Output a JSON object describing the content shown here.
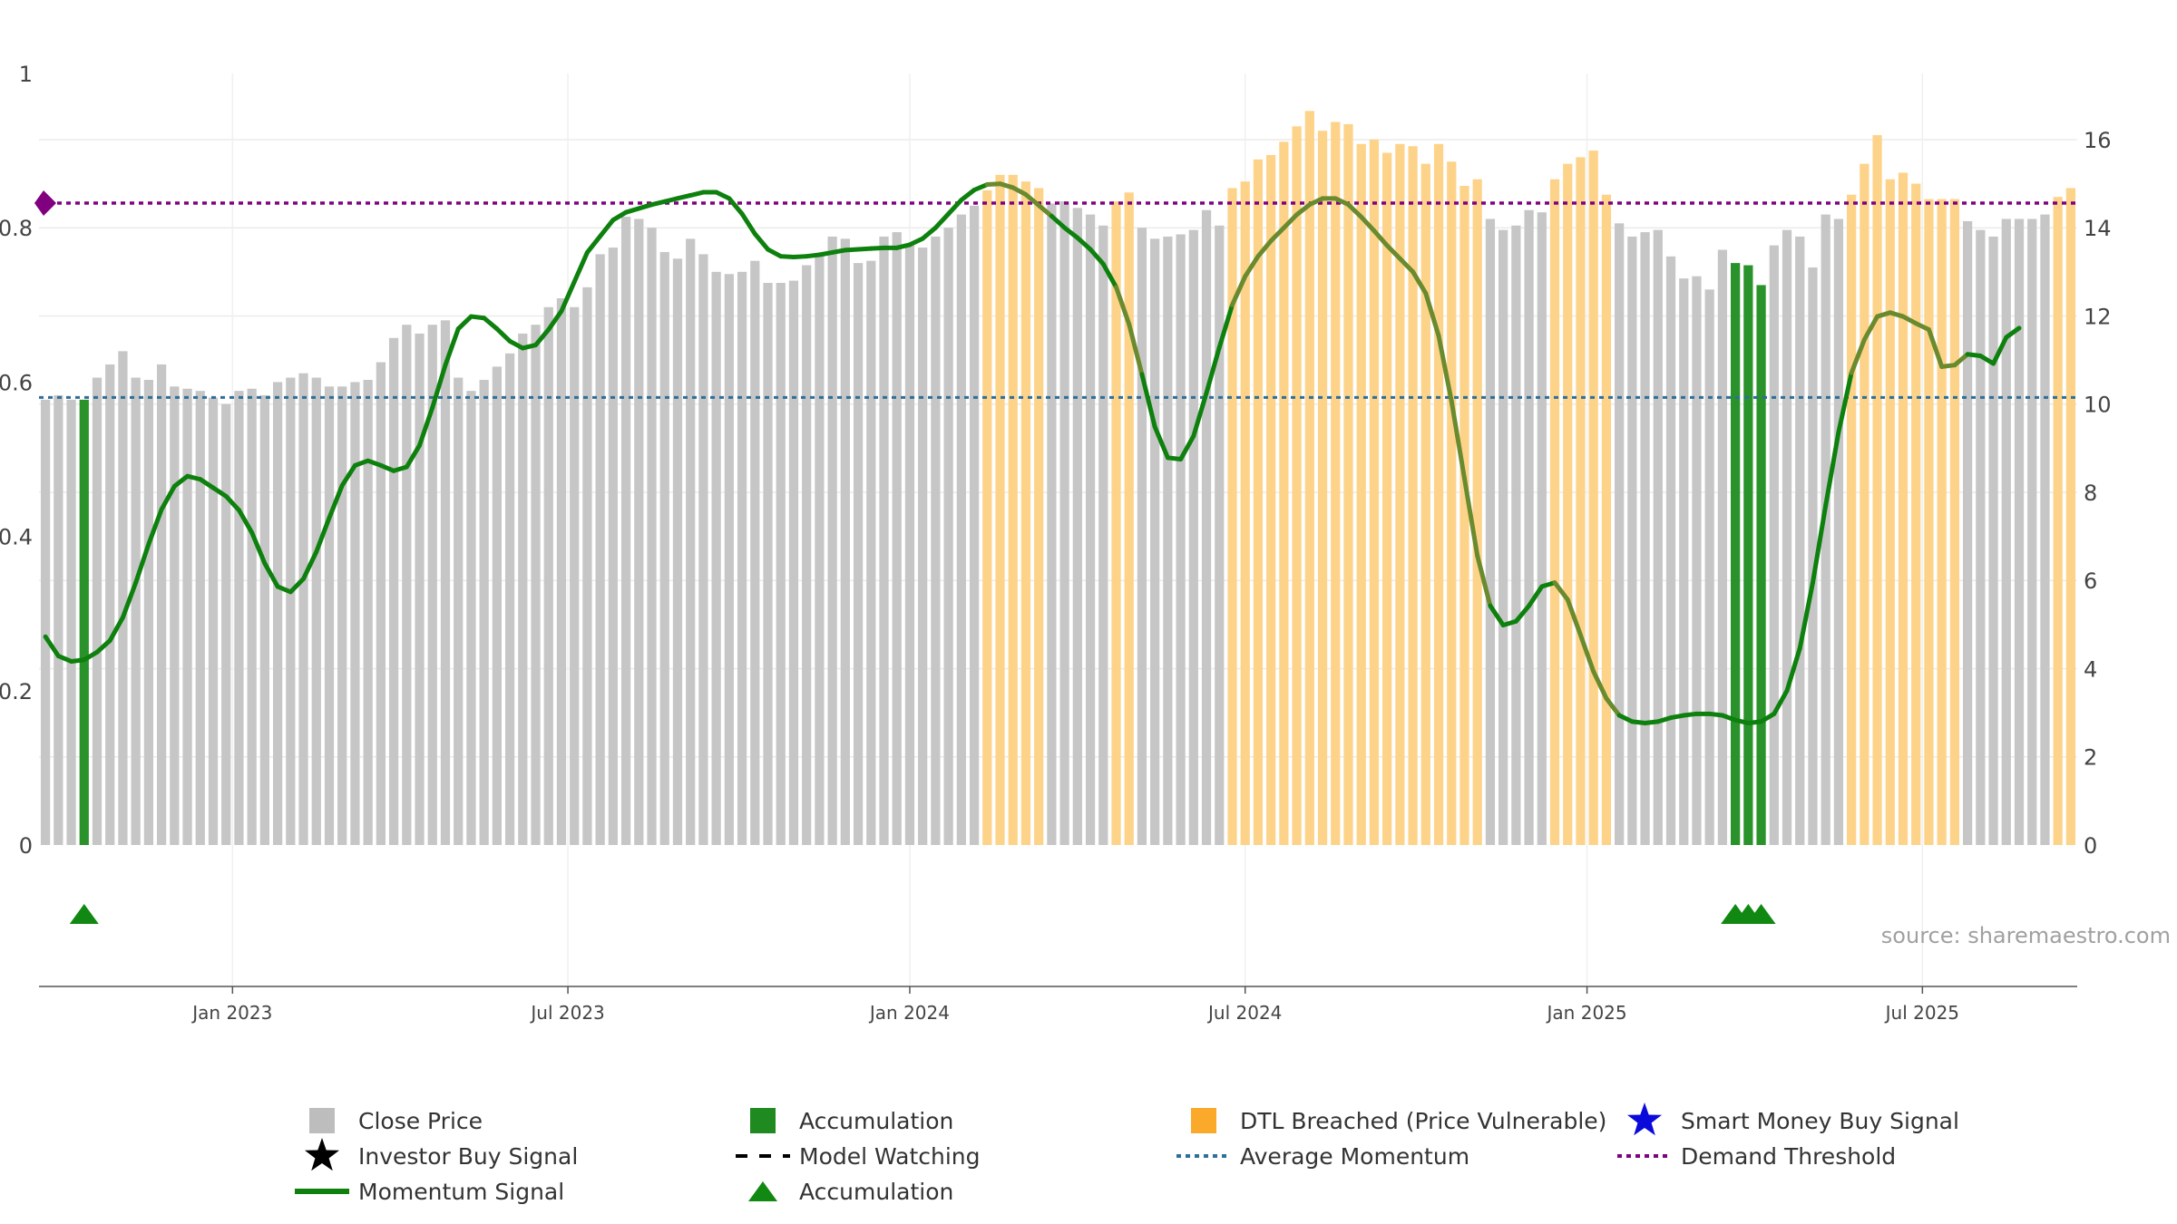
{
  "chart_data": {
    "type": "bar",
    "source_label": "source: sharemaestro.com",
    "y_left": {
      "ticks": [
        0,
        0.2,
        0.4,
        0.6,
        0.8,
        1
      ],
      "labels": [
        "0",
        "0.2",
        "0.4",
        "0.6",
        "0.8",
        "1"
      ],
      "range": [
        0,
        1
      ]
    },
    "y_right": {
      "ticks": [
        0,
        2,
        4,
        6,
        8,
        10,
        12,
        14,
        16
      ],
      "labels": [
        "0",
        "2",
        "4",
        "6",
        "8",
        "10",
        "12",
        "14",
        "16"
      ],
      "range": [
        0,
        17.5
      ]
    },
    "x_ticks": [
      {
        "label": "Jan 2023",
        "week": 15
      },
      {
        "label": "Jul 2023",
        "week": 41
      },
      {
        "label": "Jan 2024",
        "week": 67.5
      },
      {
        "label": "Jul 2024",
        "week": 93.5
      },
      {
        "label": "Jan 2025",
        "week": 120
      },
      {
        "label": "Jul 2025",
        "week": 146
      }
    ],
    "colors": {
      "close": "#c6c6c6",
      "accumulation": "#2a922a",
      "dtl": "#fdd38a",
      "momentum": "#0d800d",
      "momentum_dtl": "#6a8a2e",
      "average_momentum": "#2e6f99",
      "demand_threshold": "#800080",
      "grid": "#ebebeb",
      "triangle": "#118811"
    },
    "bars": [
      [
        "c",
        10.1
      ],
      [
        "c",
        10.2
      ],
      [
        "c",
        10.1
      ],
      [
        "a",
        10.1
      ],
      [
        "c",
        10.6
      ],
      [
        "c",
        10.9
      ],
      [
        "c",
        11.2
      ],
      [
        "c",
        10.6
      ],
      [
        "c",
        10.55
      ],
      [
        "c",
        10.9
      ],
      [
        "c",
        10.4
      ],
      [
        "c",
        10.35
      ],
      [
        "c",
        10.3
      ],
      [
        "c",
        10.15
      ],
      [
        "c",
        10.0
      ],
      [
        "c",
        10.3
      ],
      [
        "c",
        10.35
      ],
      [
        "c",
        10.2
      ],
      [
        "c",
        10.5
      ],
      [
        "c",
        10.6
      ],
      [
        "c",
        10.7
      ],
      [
        "c",
        10.6
      ],
      [
        "c",
        10.4
      ],
      [
        "c",
        10.4
      ],
      [
        "c",
        10.5
      ],
      [
        "c",
        10.55
      ],
      [
        "c",
        10.95
      ],
      [
        "c",
        11.5
      ],
      [
        "c",
        11.8
      ],
      [
        "c",
        11.6
      ],
      [
        "c",
        11.8
      ],
      [
        "c",
        11.9
      ],
      [
        "c",
        10.6
      ],
      [
        "c",
        10.3
      ],
      [
        "c",
        10.55
      ],
      [
        "c",
        10.85
      ],
      [
        "c",
        11.15
      ],
      [
        "c",
        11.6
      ],
      [
        "c",
        11.8
      ],
      [
        "c",
        12.2
      ],
      [
        "c",
        12.4
      ],
      [
        "c",
        12.2
      ],
      [
        "c",
        12.65
      ],
      [
        "c",
        13.4
      ],
      [
        "c",
        13.55
      ],
      [
        "c",
        14.25
      ],
      [
        "c",
        14.2
      ],
      [
        "c",
        14.0
      ],
      [
        "c",
        13.45
      ],
      [
        "c",
        13.3
      ],
      [
        "c",
        13.75
      ],
      [
        "c",
        13.4
      ],
      [
        "c",
        13.0
      ],
      [
        "c",
        12.95
      ],
      [
        "c",
        13.0
      ],
      [
        "c",
        13.25
      ],
      [
        "c",
        12.75
      ],
      [
        "c",
        12.75
      ],
      [
        "c",
        12.8
      ],
      [
        "c",
        13.15
      ],
      [
        "c",
        13.4
      ],
      [
        "c",
        13.8
      ],
      [
        "c",
        13.75
      ],
      [
        "c",
        13.2
      ],
      [
        "c",
        13.25
      ],
      [
        "c",
        13.8
      ],
      [
        "c",
        13.9
      ],
      [
        "c",
        13.6
      ],
      [
        "c",
        13.55
      ],
      [
        "c",
        13.8
      ],
      [
        "c",
        14.0
      ],
      [
        "c",
        14.3
      ],
      [
        "c",
        14.5
      ],
      [
        "d",
        14.85
      ],
      [
        "d",
        15.2
      ],
      [
        "d",
        15.2
      ],
      [
        "d",
        15.05
      ],
      [
        "d",
        14.9
      ],
      [
        "c",
        14.55
      ],
      [
        "c",
        14.6
      ],
      [
        "c",
        14.45
      ],
      [
        "c",
        14.3
      ],
      [
        "c",
        14.05
      ],
      [
        "d",
        14.6
      ],
      [
        "d",
        14.8
      ],
      [
        "c",
        14.0
      ],
      [
        "c",
        13.75
      ],
      [
        "c",
        13.8
      ],
      [
        "c",
        13.85
      ],
      [
        "c",
        13.95
      ],
      [
        "c",
        14.4
      ],
      [
        "c",
        14.05
      ],
      [
        "d",
        14.9
      ],
      [
        "d",
        15.05
      ],
      [
        "d",
        15.55
      ],
      [
        "d",
        15.65
      ],
      [
        "d",
        15.95
      ],
      [
        "d",
        16.3
      ],
      [
        "d",
        16.65
      ],
      [
        "d",
        16.2
      ],
      [
        "d",
        16.4
      ],
      [
        "d",
        16.35
      ],
      [
        "d",
        15.9
      ],
      [
        "d",
        16.0
      ],
      [
        "d",
        15.7
      ],
      [
        "d",
        15.9
      ],
      [
        "d",
        15.85
      ],
      [
        "d",
        15.45
      ],
      [
        "d",
        15.9
      ],
      [
        "d",
        15.5
      ],
      [
        "d",
        14.95
      ],
      [
        "d",
        15.1
      ],
      [
        "c",
        14.2
      ],
      [
        "c",
        13.95
      ],
      [
        "c",
        14.05
      ],
      [
        "c",
        14.4
      ],
      [
        "c",
        14.35
      ],
      [
        "d",
        15.1
      ],
      [
        "d",
        15.45
      ],
      [
        "d",
        15.6
      ],
      [
        "d",
        15.75
      ],
      [
        "d",
        14.75
      ],
      [
        "c",
        14.1
      ],
      [
        "c",
        13.8
      ],
      [
        "c",
        13.9
      ],
      [
        "c",
        13.95
      ],
      [
        "c",
        13.35
      ],
      [
        "c",
        12.85
      ],
      [
        "c",
        12.9
      ],
      [
        "c",
        12.6
      ],
      [
        "c",
        13.5
      ],
      [
        "a",
        13.2
      ],
      [
        "a",
        13.15
      ],
      [
        "a",
        12.7
      ],
      [
        "c",
        13.6
      ],
      [
        "c",
        13.95
      ],
      [
        "c",
        13.8
      ],
      [
        "c",
        13.1
      ],
      [
        "c",
        14.3
      ],
      [
        "c",
        14.2
      ],
      [
        "d",
        14.75
      ],
      [
        "d",
        15.45
      ],
      [
        "d",
        16.1
      ],
      [
        "d",
        15.1
      ],
      [
        "d",
        15.25
      ],
      [
        "d",
        15.0
      ],
      [
        "d",
        14.65
      ],
      [
        "d",
        14.65
      ],
      [
        "d",
        14.65
      ],
      [
        "c",
        14.15
      ],
      [
        "c",
        13.95
      ],
      [
        "c",
        13.8
      ],
      [
        "c",
        14.2
      ],
      [
        "c",
        14.2
      ],
      [
        "c",
        14.2
      ],
      [
        "c",
        14.3
      ],
      [
        "d",
        14.7
      ],
      [
        "d",
        14.9
      ]
    ],
    "momentum": [
      [
        0,
        0.27
      ],
      [
        1,
        0.245
      ],
      [
        2,
        0.238
      ],
      [
        3,
        0.24
      ],
      [
        4,
        0.25
      ],
      [
        5,
        0.265
      ],
      [
        6,
        0.295
      ],
      [
        7,
        0.34
      ],
      [
        8,
        0.39
      ],
      [
        9,
        0.435
      ],
      [
        10,
        0.465
      ],
      [
        11,
        0.478
      ],
      [
        12,
        0.474
      ],
      [
        13,
        0.463
      ],
      [
        14,
        0.452
      ],
      [
        15,
        0.434
      ],
      [
        16,
        0.405
      ],
      [
        17,
        0.365
      ],
      [
        18,
        0.335
      ],
      [
        19,
        0.328
      ],
      [
        20,
        0.345
      ],
      [
        21,
        0.38
      ],
      [
        22,
        0.424
      ],
      [
        23,
        0.466
      ],
      [
        24,
        0.492
      ],
      [
        25,
        0.498
      ],
      [
        26,
        0.492
      ],
      [
        27,
        0.485
      ],
      [
        28,
        0.49
      ],
      [
        29,
        0.518
      ],
      [
        30,
        0.567
      ],
      [
        31,
        0.622
      ],
      [
        32,
        0.669
      ],
      [
        33,
        0.685
      ],
      [
        34,
        0.683
      ],
      [
        35,
        0.669
      ],
      [
        36,
        0.653
      ],
      [
        37,
        0.644
      ],
      [
        38,
        0.648
      ],
      [
        39,
        0.668
      ],
      [
        40,
        0.692
      ],
      [
        41,
        0.73
      ],
      [
        42,
        0.768
      ],
      [
        43,
        0.789
      ],
      [
        44,
        0.81
      ],
      [
        45,
        0.82
      ],
      [
        46,
        0.825
      ],
      [
        47,
        0.83
      ],
      [
        48,
        0.834
      ],
      [
        49,
        0.838
      ],
      [
        50,
        0.842
      ],
      [
        51,
        0.846
      ],
      [
        52,
        0.846
      ],
      [
        53,
        0.838
      ],
      [
        54,
        0.818
      ],
      [
        55,
        0.792
      ],
      [
        56,
        0.772
      ],
      [
        57,
        0.763
      ],
      [
        58,
        0.762
      ],
      [
        59,
        0.763
      ],
      [
        60,
        0.765
      ],
      [
        61,
        0.768
      ],
      [
        62,
        0.771
      ],
      [
        63,
        0.772
      ],
      [
        64,
        0.773
      ],
      [
        65,
        0.774
      ],
      [
        66,
        0.774
      ],
      [
        67,
        0.778
      ],
      [
        68,
        0.786
      ],
      [
        69,
        0.8
      ],
      [
        70,
        0.818
      ],
      [
        71,
        0.836
      ],
      [
        72,
        0.849
      ],
      [
        73,
        0.856
      ],
      [
        74,
        0.857
      ],
      [
        75,
        0.852
      ],
      [
        76,
        0.843
      ],
      [
        77,
        0.829
      ],
      [
        78,
        0.815
      ],
      [
        79,
        0.8
      ],
      [
        80,
        0.787
      ],
      [
        81,
        0.772
      ],
      [
        82,
        0.753
      ],
      [
        83,
        0.723
      ],
      [
        84,
        0.675
      ],
      [
        85,
        0.61
      ],
      [
        86,
        0.542
      ],
      [
        87,
        0.502
      ],
      [
        88,
        0.5
      ],
      [
        89,
        0.53
      ],
      [
        90,
        0.586
      ],
      [
        91,
        0.645
      ],
      [
        92,
        0.7
      ],
      [
        93,
        0.737
      ],
      [
        94,
        0.763
      ],
      [
        95,
        0.783
      ],
      [
        96,
        0.8
      ],
      [
        97,
        0.817
      ],
      [
        98,
        0.83
      ],
      [
        99,
        0.838
      ],
      [
        100,
        0.838
      ],
      [
        101,
        0.83
      ],
      [
        102,
        0.814
      ],
      [
        103,
        0.796
      ],
      [
        104,
        0.777
      ],
      [
        105,
        0.76
      ],
      [
        106,
        0.743
      ],
      [
        107,
        0.715
      ],
      [
        108,
        0.66
      ],
      [
        109,
        0.575
      ],
      [
        110,
        0.475
      ],
      [
        111,
        0.375
      ],
      [
        112,
        0.31
      ],
      [
        113,
        0.285
      ],
      [
        114,
        0.29
      ],
      [
        115,
        0.31
      ],
      [
        116,
        0.335
      ],
      [
        117,
        0.34
      ],
      [
        118,
        0.318
      ],
      [
        119,
        0.272
      ],
      [
        120,
        0.225
      ],
      [
        121,
        0.19
      ],
      [
        122,
        0.168
      ],
      [
        123,
        0.16
      ],
      [
        124,
        0.158
      ],
      [
        125,
        0.16
      ],
      [
        126,
        0.165
      ],
      [
        127,
        0.168
      ],
      [
        128,
        0.17
      ],
      [
        129,
        0.17
      ],
      [
        130,
        0.168
      ],
      [
        131,
        0.162
      ],
      [
        132,
        0.158
      ],
      [
        133,
        0.16
      ],
      [
        134,
        0.17
      ],
      [
        135,
        0.2
      ],
      [
        136,
        0.255
      ],
      [
        137,
        0.34
      ],
      [
        138,
        0.44
      ],
      [
        139,
        0.535
      ],
      [
        140,
        0.612
      ],
      [
        141,
        0.655
      ],
      [
        142,
        0.685
      ],
      [
        143,
        0.69
      ],
      [
        144,
        0.685
      ],
      [
        145,
        0.676
      ],
      [
        146,
        0.668
      ],
      [
        147,
        0.62
      ],
      [
        148,
        0.622
      ],
      [
        149,
        0.636
      ],
      [
        150,
        0.634
      ],
      [
        151,
        0.624
      ],
      [
        152,
        0.658
      ],
      [
        153,
        0.67
      ]
    ],
    "average_momentum": 0.58,
    "demand_threshold": 0.832,
    "accumulation_triangles": [
      3,
      131,
      132,
      133
    ],
    "legend": [
      {
        "label": "Close Price",
        "symbol": "square",
        "color": "#bdbdbd"
      },
      {
        "label": "Accumulation",
        "symbol": "square",
        "color": "#1f8a1f"
      },
      {
        "label": "DTL Breached (Price Vulnerable)",
        "symbol": "square",
        "color": "#fba92a"
      },
      {
        "label": "Smart Money Buy Signal",
        "symbol": "star",
        "color": "#0a0adb"
      },
      {
        "label": "Investor Buy Signal",
        "symbol": "star",
        "color": "#000000"
      },
      {
        "label": "Model Watching",
        "symbol": "dash",
        "color": "#000000"
      },
      {
        "label": "Average Momentum",
        "symbol": "dot",
        "color": "#2e6f99"
      },
      {
        "label": "Demand Threshold",
        "symbol": "dot",
        "color": "#800080"
      },
      {
        "label": "Momentum Signal",
        "symbol": "line",
        "color": "#0d800d"
      },
      {
        "label": "Accumulation",
        "symbol": "triangle",
        "color": "#118811"
      }
    ]
  }
}
